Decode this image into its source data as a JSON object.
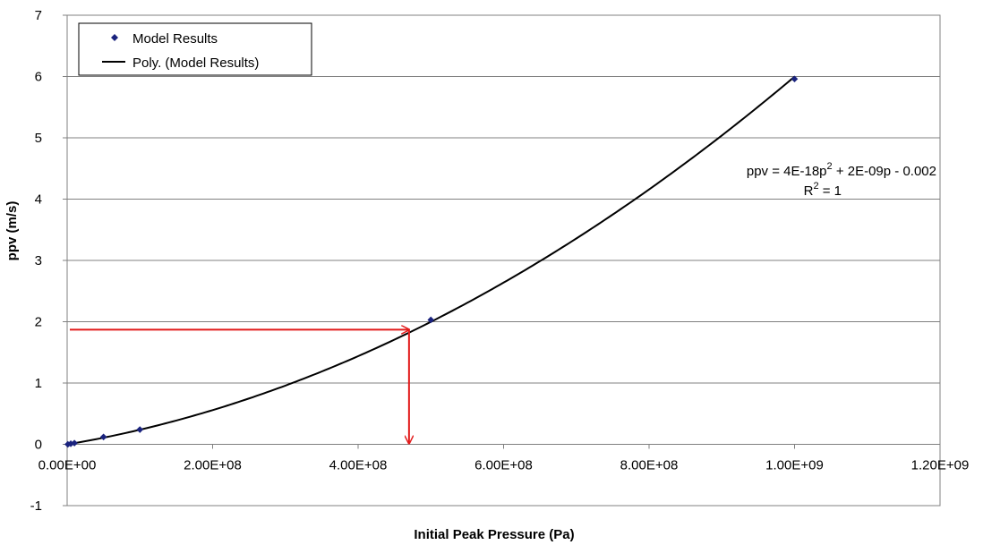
{
  "chart_data": {
    "type": "scatter",
    "title": "",
    "xlabel": "Initial Peak Pressure (Pa)",
    "ylabel": "ppv (m/s)",
    "xlim": [
      0,
      1200000000
    ],
    "ylim": [
      -1,
      7
    ],
    "x_ticks": [
      0,
      200000000,
      400000000,
      600000000,
      800000000,
      1000000000,
      1200000000
    ],
    "x_tick_labels": [
      "0.00E+00",
      "2.00E+08",
      "4.00E+08",
      "6.00E+08",
      "8.00E+08",
      "1.00E+09",
      "1.20E+09"
    ],
    "y_ticks": [
      -1,
      0,
      1,
      2,
      3,
      4,
      5,
      6,
      7
    ],
    "y_tick_labels": [
      "-1",
      "0",
      "1",
      "2",
      "3",
      "4",
      "5",
      "6",
      "7"
    ],
    "grid": "horizontal",
    "legend_position": "top-left",
    "series": [
      {
        "name": "Model Results",
        "kind": "markers",
        "marker": "diamond",
        "color": "#1a237e",
        "x": [
          1000000,
          5000000,
          10000000,
          50000000,
          100000000,
          500000000,
          1000000000
        ],
        "y": [
          0.0,
          0.01,
          0.02,
          0.12,
          0.24,
          2.03,
          5.96
        ]
      },
      {
        "name": "Poly. (Model Results)",
        "kind": "trendline",
        "color": "#000000",
        "equation": {
          "a": 4e-18,
          "b": 2e-09,
          "c": -0.002
        },
        "x_range": [
          0,
          1000000000
        ]
      }
    ],
    "annotations": {
      "equation_line1_main": "ppv = 4E-18p",
      "equation_line1_sup": "2",
      "equation_line1_tail": " + 2E-09p - 0.002",
      "r2_main": "R",
      "r2_sup": "2",
      "r2_tail": " = 1",
      "red_lookup": {
        "color": "#e21b1b",
        "x": 470000000,
        "y": 1.87
      }
    }
  }
}
